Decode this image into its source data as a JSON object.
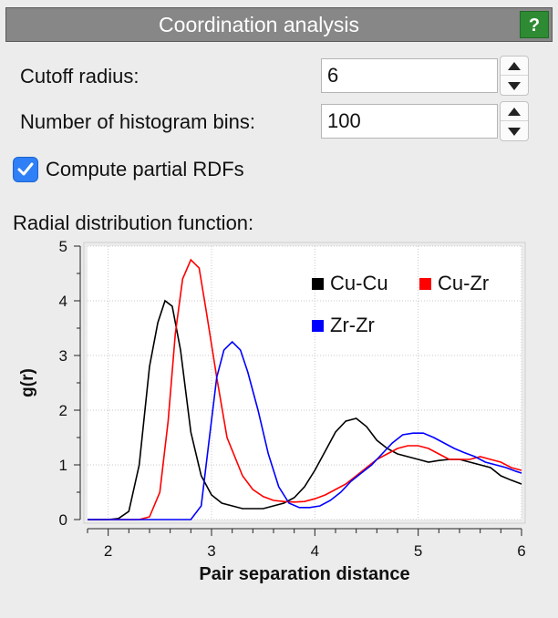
{
  "header": {
    "title": "Coordination analysis",
    "help_label": "?"
  },
  "settings": {
    "cutoff_label": "Cutoff radius:",
    "cutoff_value": "6",
    "bins_label": "Number of histogram bins:",
    "bins_value": "100",
    "partial_label": "Compute partial RDFs",
    "partial_checked": true
  },
  "rdf_label": "Radial distribution function:",
  "chart_data": {
    "type": "line",
    "xlabel": "Pair separation distance",
    "ylabel": "g(r)",
    "xlim": [
      1.8,
      6.0
    ],
    "ylim": [
      0,
      5
    ],
    "xticks": [
      2,
      3,
      4,
      5,
      6
    ],
    "yticks": [
      0,
      1,
      2,
      3,
      4,
      5
    ],
    "grid": true,
    "legend": "top-right",
    "series": [
      {
        "name": "Cu-Cu",
        "color": "#000000",
        "x": [
          1.8,
          2.0,
          2.1,
          2.2,
          2.3,
          2.4,
          2.48,
          2.55,
          2.62,
          2.7,
          2.8,
          2.9,
          3.0,
          3.1,
          3.2,
          3.3,
          3.4,
          3.5,
          3.6,
          3.7,
          3.8,
          3.9,
          4.0,
          4.1,
          4.2,
          4.3,
          4.4,
          4.5,
          4.6,
          4.7,
          4.8,
          4.9,
          5.0,
          5.1,
          5.2,
          5.3,
          5.4,
          5.5,
          5.6,
          5.7,
          5.8,
          5.9,
          6.0
        ],
        "y": [
          0.0,
          0.0,
          0.02,
          0.15,
          1.0,
          2.8,
          3.6,
          4.0,
          3.9,
          3.1,
          1.6,
          0.8,
          0.45,
          0.3,
          0.25,
          0.2,
          0.2,
          0.2,
          0.25,
          0.3,
          0.4,
          0.6,
          0.9,
          1.25,
          1.6,
          1.8,
          1.85,
          1.7,
          1.45,
          1.3,
          1.2,
          1.15,
          1.1,
          1.05,
          1.08,
          1.1,
          1.1,
          1.05,
          1.0,
          0.95,
          0.8,
          0.72,
          0.65
        ]
      },
      {
        "name": "Cu-Zr",
        "color": "#ff0000",
        "x": [
          1.8,
          2.3,
          2.4,
          2.5,
          2.58,
          2.65,
          2.72,
          2.8,
          2.88,
          2.95,
          3.05,
          3.15,
          3.3,
          3.4,
          3.5,
          3.6,
          3.7,
          3.8,
          3.9,
          4.0,
          4.1,
          4.2,
          4.3,
          4.4,
          4.5,
          4.6,
          4.7,
          4.8,
          4.9,
          5.0,
          5.1,
          5.2,
          5.3,
          5.4,
          5.5,
          5.6,
          5.7,
          5.8,
          5.9,
          6.0
        ],
        "y": [
          0.0,
          0.0,
          0.05,
          0.5,
          1.8,
          3.4,
          4.4,
          4.75,
          4.6,
          3.8,
          2.6,
          1.5,
          0.8,
          0.55,
          0.42,
          0.35,
          0.33,
          0.32,
          0.33,
          0.38,
          0.45,
          0.55,
          0.65,
          0.8,
          0.95,
          1.1,
          1.2,
          1.3,
          1.35,
          1.35,
          1.3,
          1.2,
          1.1,
          1.1,
          1.1,
          1.15,
          1.1,
          1.05,
          0.95,
          0.9
        ]
      },
      {
        "name": "Zr-Zr",
        "color": "#0000ff",
        "x": [
          1.8,
          2.8,
          2.9,
          2.98,
          3.05,
          3.12,
          3.2,
          3.28,
          3.35,
          3.45,
          3.55,
          3.65,
          3.75,
          3.85,
          3.95,
          4.05,
          4.15,
          4.25,
          4.35,
          4.45,
          4.55,
          4.65,
          4.75,
          4.85,
          4.95,
          5.05,
          5.15,
          5.25,
          5.35,
          5.45,
          5.55,
          5.65,
          5.75,
          5.85,
          5.95,
          6.0
        ],
        "y": [
          0.0,
          0.0,
          0.25,
          1.5,
          2.6,
          3.1,
          3.25,
          3.1,
          2.7,
          2.0,
          1.2,
          0.6,
          0.3,
          0.22,
          0.22,
          0.25,
          0.35,
          0.5,
          0.7,
          0.85,
          1.0,
          1.2,
          1.4,
          1.55,
          1.58,
          1.58,
          1.5,
          1.4,
          1.3,
          1.22,
          1.15,
          1.05,
          1.0,
          0.95,
          0.88,
          0.85
        ]
      }
    ]
  }
}
